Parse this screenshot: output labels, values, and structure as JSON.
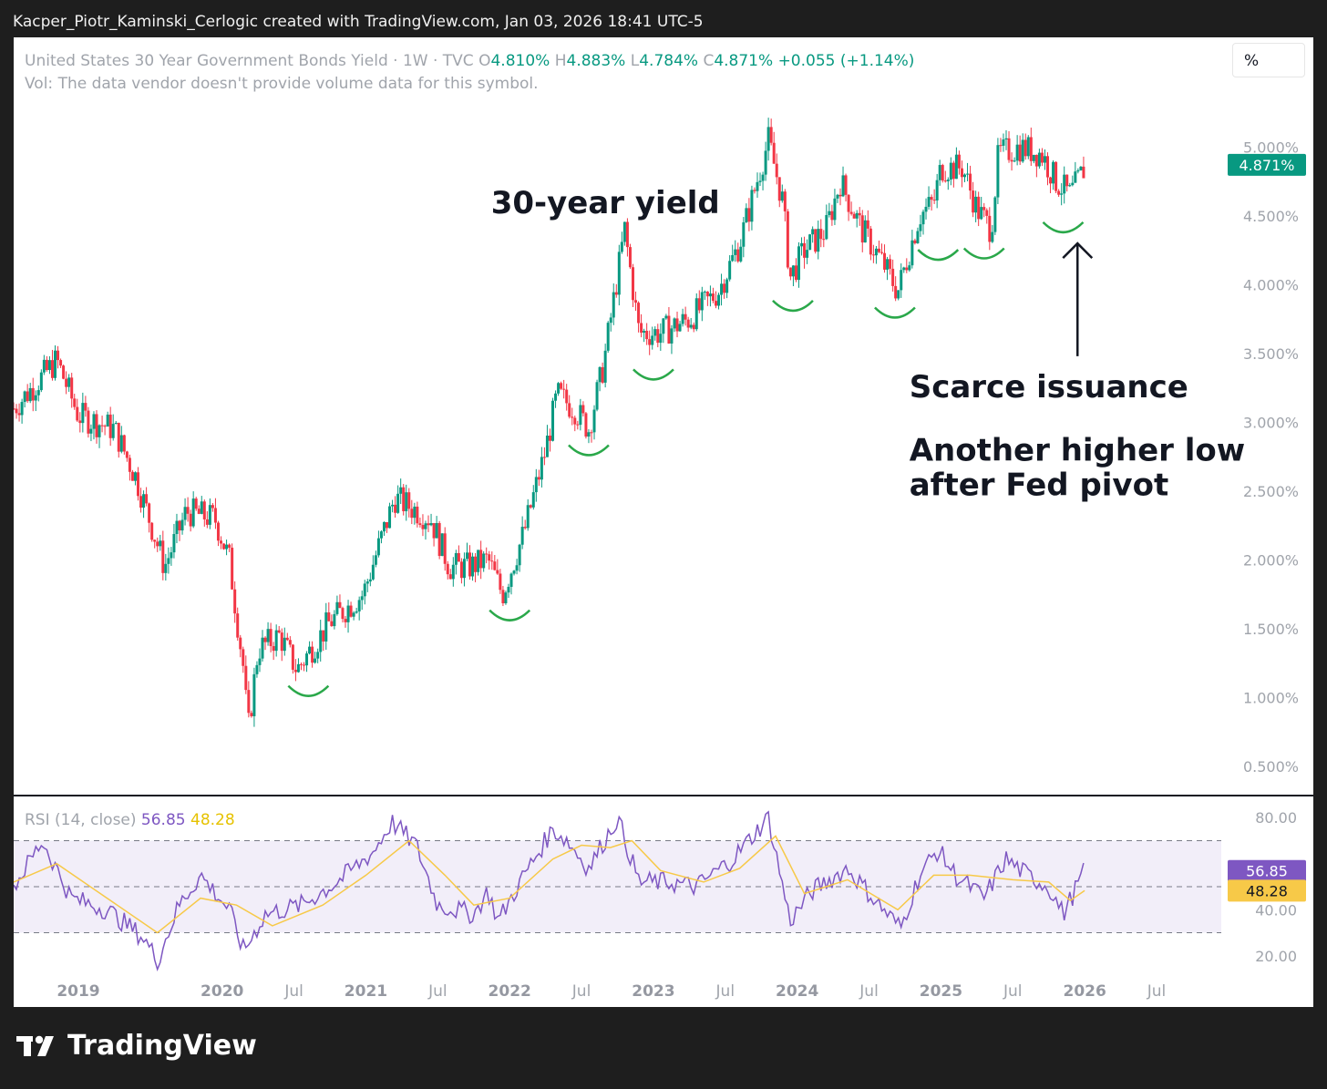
{
  "header": {
    "text": "Kacper_Piotr_Kaminski_Cerlogic created with TradingView.com, Jan 03, 2026 18:41 UTC-5"
  },
  "legend": {
    "symbol": "United States 30 Year Government Bonds Yield · 1W · TVC",
    "o_label": "O",
    "o_value": "4.810%",
    "h_label": "H",
    "h_value": "4.883%",
    "l_label": "L",
    "l_value": "4.784%",
    "c_label": "C",
    "c_value": "4.871%",
    "change": "+0.055 (+1.14%)",
    "vol": "Vol: The data vendor doesn't provide volume data for this symbol."
  },
  "scale_button": "%",
  "rsi_legend": {
    "label": "RSI (14, close)",
    "rsi": "56.85",
    "ma": "48.28"
  },
  "brand": {
    "name": "TradingView"
  },
  "colors": {
    "up": "#089981",
    "down": "#f23645",
    "rsi": "#7e57c2",
    "rsi_ma": "#f7c948",
    "annotation": "#089981"
  },
  "chart_data": [
    {
      "type": "candlestick",
      "ylim": [
        0.3,
        5.4
      ],
      "yticks": [
        "0.500%",
        "1.000%",
        "1.500%",
        "2.000%",
        "2.500%",
        "3.000%",
        "3.500%",
        "4.000%",
        "4.500%",
        "5.000%"
      ],
      "ytick_values": [
        0.5,
        1.0,
        1.5,
        2.0,
        2.5,
        3.0,
        3.5,
        4.0,
        4.5,
        5.0
      ],
      "last_price_label": "4.871%",
      "last_price": 4.871,
      "x_axis_labels": [
        "2019",
        "2020",
        "Jul",
        "2021",
        "Jul",
        "2022",
        "Jul",
        "2023",
        "Jul",
        "2024",
        "Jul",
        "2025",
        "Jul",
        "2026",
        "Jul"
      ],
      "x_axis_dates": [
        2019.0,
        2020.0,
        2020.5,
        2021.0,
        2021.5,
        2022.0,
        2022.5,
        2023.0,
        2023.5,
        2024.0,
        2024.5,
        2025.0,
        2025.5,
        2026.0,
        2026.5
      ],
      "x_axis_bold": [
        true,
        true,
        false,
        true,
        false,
        true,
        false,
        true,
        false,
        true,
        false,
        true,
        false,
        true,
        false
      ],
      "xlim": [
        2018.55,
        2026.95
      ],
      "path": [
        [
          2018.55,
          3.1
        ],
        [
          2018.85,
          3.45
        ],
        [
          2019.0,
          3.05
        ],
        [
          2019.25,
          2.95
        ],
        [
          2019.4,
          2.6
        ],
        [
          2019.6,
          1.95
        ],
        [
          2019.75,
          2.35
        ],
        [
          2019.95,
          2.3
        ],
        [
          2020.05,
          2.0
        ],
        [
          2020.15,
          1.2
        ],
        [
          2020.18,
          0.75
        ],
        [
          2020.25,
          1.35
        ],
        [
          2020.4,
          1.45
        ],
        [
          2020.52,
          1.2
        ],
        [
          2020.75,
          1.55
        ],
        [
          2020.98,
          1.75
        ],
        [
          2021.2,
          2.45
        ],
        [
          2021.45,
          2.3
        ],
        [
          2021.58,
          1.95
        ],
        [
          2021.72,
          1.95
        ],
        [
          2021.85,
          2.0
        ],
        [
          2021.95,
          1.75
        ],
        [
          2022.1,
          2.2
        ],
        [
          2022.25,
          2.8
        ],
        [
          2022.33,
          3.2
        ],
        [
          2022.45,
          3.1
        ],
        [
          2022.55,
          2.95
        ],
        [
          2022.65,
          3.4
        ],
        [
          2022.8,
          4.4
        ],
        [
          2022.9,
          3.65
        ],
        [
          2023.05,
          3.65
        ],
        [
          2023.25,
          3.75
        ],
        [
          2023.45,
          3.95
        ],
        [
          2023.6,
          4.3
        ],
        [
          2023.8,
          5.05
        ],
        [
          2023.9,
          4.6
        ],
        [
          2023.95,
          4.05
        ],
        [
          2024.05,
          4.25
        ],
        [
          2024.2,
          4.4
        ],
        [
          2024.3,
          4.75
        ],
        [
          2024.45,
          4.4
        ],
        [
          2024.6,
          4.15
        ],
        [
          2024.7,
          3.95
        ],
        [
          2024.85,
          4.5
        ],
        [
          2024.95,
          4.6
        ],
        [
          2025.0,
          4.85
        ],
        [
          2025.15,
          4.85
        ],
        [
          2025.25,
          4.55
        ],
        [
          2025.35,
          4.4
        ],
        [
          2025.4,
          4.95
        ],
        [
          2025.55,
          5.0
        ],
        [
          2025.7,
          4.95
        ],
        [
          2025.8,
          4.75
        ],
        [
          2025.9,
          4.65
        ],
        [
          2026.0,
          4.85
        ]
      ],
      "lows_marked": [
        [
          2020.6,
          1.15
        ],
        [
          2022.0,
          1.7
        ],
        [
          2022.55,
          2.9
        ],
        [
          2023.0,
          3.45
        ],
        [
          2023.97,
          3.95
        ],
        [
          2024.68,
          3.9
        ],
        [
          2024.98,
          4.32
        ],
        [
          2025.3,
          4.33
        ],
        [
          2025.85,
          4.52
        ]
      ],
      "annotations": [
        {
          "text": "30-year yield",
          "x": 2021.87,
          "y": 4.52
        },
        {
          "text": "Scarce issuance",
          "x": 2024.78,
          "y": 3.18
        },
        {
          "text": "Another higher low",
          "x": 2024.78,
          "y": 2.72
        },
        {
          "text": "after Fed pivot",
          "x": 2024.78,
          "y": 2.47
        }
      ],
      "arrow": {
        "x": 2025.95,
        "y_from": 3.48,
        "y_to": 4.3
      }
    },
    {
      "type": "line",
      "name": "RSI (14, close)",
      "ylim": [
        12,
        88
      ],
      "yticks": [
        "20.00",
        "40.00",
        "80.00"
      ],
      "ytick_values": [
        20,
        40,
        80
      ],
      "band": [
        30,
        70
      ],
      "midline": 50,
      "last_rsi_label": "56.85",
      "last_ma_label": "48.28",
      "path": [
        [
          2018.55,
          50
        ],
        [
          2018.75,
          70
        ],
        [
          2018.95,
          45
        ],
        [
          2019.2,
          40
        ],
        [
          2019.45,
          28
        ],
        [
          2019.55,
          18
        ],
        [
          2019.7,
          42
        ],
        [
          2019.85,
          55
        ],
        [
          2020.05,
          40
        ],
        [
          2020.15,
          22
        ],
        [
          2020.3,
          38
        ],
        [
          2020.55,
          42
        ],
        [
          2020.8,
          52
        ],
        [
          2021.05,
          65
        ],
        [
          2021.18,
          78
        ],
        [
          2021.35,
          68
        ],
        [
          2021.5,
          42
        ],
        [
          2021.75,
          38
        ],
        [
          2021.85,
          48
        ],
        [
          2021.92,
          35
        ],
        [
          2022.1,
          55
        ],
        [
          2022.3,
          75
        ],
        [
          2022.4,
          70
        ],
        [
          2022.55,
          58
        ],
        [
          2022.75,
          80
        ],
        [
          2022.9,
          52
        ],
        [
          2023.1,
          52
        ],
        [
          2023.3,
          50
        ],
        [
          2023.55,
          62
        ],
        [
          2023.8,
          80
        ],
        [
          2023.95,
          35
        ],
        [
          2024.1,
          48
        ],
        [
          2024.35,
          58
        ],
        [
          2024.6,
          40
        ],
        [
          2024.72,
          32
        ],
        [
          2024.85,
          55
        ],
        [
          2024.98,
          66
        ],
        [
          2025.1,
          55
        ],
        [
          2025.3,
          45
        ],
        [
          2025.45,
          62
        ],
        [
          2025.6,
          55
        ],
        [
          2025.75,
          50
        ],
        [
          2025.85,
          38
        ],
        [
          2026.0,
          56.85
        ]
      ],
      "ma_path": [
        [
          2018.55,
          52
        ],
        [
          2018.85,
          60
        ],
        [
          2019.2,
          45
        ],
        [
          2019.55,
          30
        ],
        [
          2019.85,
          45
        ],
        [
          2020.1,
          42
        ],
        [
          2020.35,
          33
        ],
        [
          2020.7,
          42
        ],
        [
          2021.0,
          55
        ],
        [
          2021.3,
          70
        ],
        [
          2021.55,
          55
        ],
        [
          2021.75,
          42
        ],
        [
          2022.0,
          45
        ],
        [
          2022.3,
          62
        ],
        [
          2022.5,
          68
        ],
        [
          2022.7,
          67
        ],
        [
          2022.85,
          70
        ],
        [
          2023.05,
          57
        ],
        [
          2023.35,
          52
        ],
        [
          2023.6,
          58
        ],
        [
          2023.85,
          72
        ],
        [
          2024.05,
          47
        ],
        [
          2024.35,
          53
        ],
        [
          2024.7,
          40
        ],
        [
          2024.95,
          55
        ],
        [
          2025.2,
          55
        ],
        [
          2025.5,
          53
        ],
        [
          2025.75,
          52
        ],
        [
          2025.9,
          44
        ],
        [
          2026.0,
          48.28
        ]
      ]
    }
  ]
}
